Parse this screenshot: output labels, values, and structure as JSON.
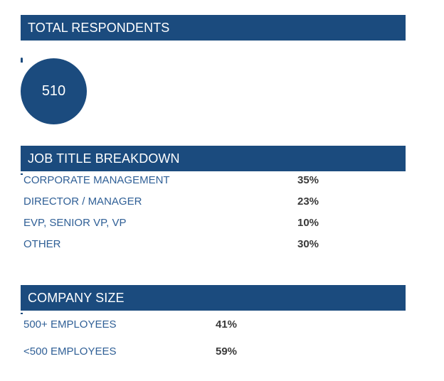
{
  "total_respondents": {
    "header": "TOTAL RESPONDENTS",
    "count": "510"
  },
  "job_title": {
    "header": "JOB TITLE BREAKDOWN",
    "rows": [
      {
        "label": "CORPORATE MANAGEMENT",
        "value": "35%"
      },
      {
        "label": "DIRECTOR / MANAGER",
        "value": "23%"
      },
      {
        "label": "EVP, SENIOR VP, VP",
        "value": "10%"
      },
      {
        "label": "OTHER",
        "value": "30%"
      }
    ]
  },
  "company_size": {
    "header": "COMPANY SIZE",
    "rows": [
      {
        "label": "500+ EMPLOYEES",
        "value": "41%"
      },
      {
        "label": "<500 EMPLOYEES",
        "value": "59%"
      }
    ]
  },
  "colors": {
    "accent": "#1b4b7e",
    "label_text": "#2f5f96",
    "value_text": "#3a3a3a"
  }
}
